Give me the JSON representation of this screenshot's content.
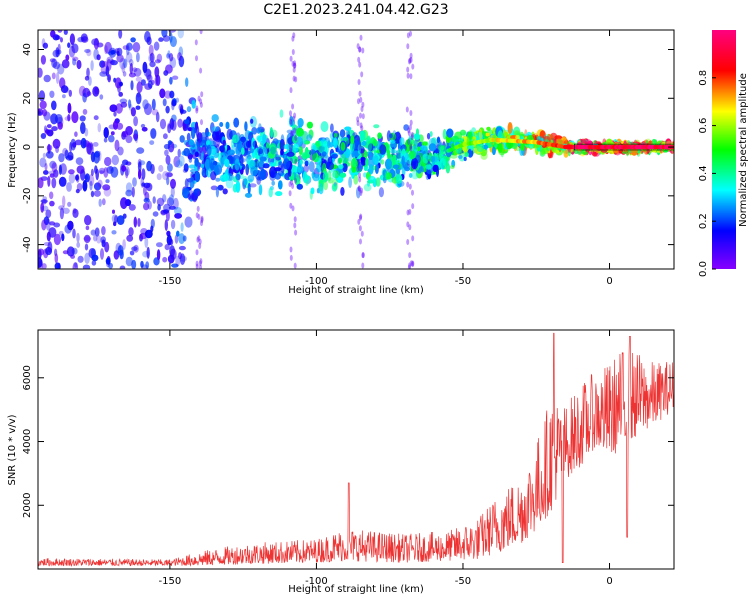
{
  "title": "C2E1.2023.241.04.42.G23",
  "chart_data": [
    {
      "type": "heatmap",
      "xlabel": "Height of straight line (km)",
      "ylabel": "Frequency (Hz)",
      "xlim": [
        -195,
        22
      ],
      "ylim": [
        -50,
        48
      ],
      "xticks": [
        -150,
        -100,
        -50,
        0
      ],
      "yticks": [
        -40,
        -20,
        0,
        20,
        40
      ],
      "colorbar": {
        "label": "Normalized spectral amplitude",
        "range": [
          0,
          1
        ],
        "ticks": [
          "0.0",
          "0.2",
          "0.4",
          "0.6",
          "0.8"
        ],
        "colormap": "gist_rainbow_r",
        "colors": [
          "#8800ff",
          "#0000ff",
          "#00ffff",
          "#00ff00",
          "#ffff00",
          "#ff0000",
          "#ff0080"
        ]
      },
      "trend": [
        {
          "x": -195,
          "spread": 48,
          "peak": 0.15
        },
        {
          "x": -150,
          "spread": 45,
          "peak": 0.2
        },
        {
          "x": -140,
          "spread": 12,
          "peak": 0.3
        },
        {
          "x": -100,
          "spread": 12,
          "peak": 0.45
        },
        {
          "x": -75,
          "spread": 10,
          "peak": 0.45
        },
        {
          "x": -55,
          "spread": 6,
          "peak": 0.5
        },
        {
          "x": -45,
          "spread": 4,
          "peak": 0.65
        },
        {
          "x": -20,
          "spread": 3,
          "peak": 0.8
        },
        {
          "x": -12,
          "spread": 1.5,
          "peak": 0.95
        },
        {
          "x": 22,
          "spread": 1.2,
          "peak": 1.0
        }
      ],
      "ridge": [
        {
          "x": -60,
          "y": -4
        },
        {
          "x": -50,
          "y": 1
        },
        {
          "x": -40,
          "y": 3
        },
        {
          "x": -25,
          "y": 2
        },
        {
          "x": -15,
          "y": 0
        },
        {
          "x": 22,
          "y": 0
        }
      ]
    },
    {
      "type": "line",
      "xlabel": "Height of straight line (km)",
      "ylabel": "SNR (10 * v/v)",
      "xlim": [
        -195,
        22
      ],
      "ylim": [
        0,
        7500
      ],
      "xticks": [
        -150,
        -100,
        -50,
        0
      ],
      "yticks": [
        2000,
        4000,
        6000
      ],
      "color": "#ee3333",
      "envelope": [
        {
          "x": -195,
          "low": 100,
          "high": 350
        },
        {
          "x": -150,
          "low": 100,
          "high": 300
        },
        {
          "x": -140,
          "low": 100,
          "high": 550
        },
        {
          "x": -125,
          "low": 150,
          "high": 800
        },
        {
          "x": -100,
          "low": 200,
          "high": 950
        },
        {
          "x": -90,
          "low": 250,
          "high": 1300
        },
        {
          "x": -70,
          "low": 200,
          "high": 1100
        },
        {
          "x": -55,
          "low": 250,
          "high": 1200
        },
        {
          "x": -45,
          "low": 300,
          "high": 1600
        },
        {
          "x": -38,
          "low": 500,
          "high": 2400
        },
        {
          "x": -30,
          "low": 800,
          "high": 3000
        },
        {
          "x": -25,
          "low": 1200,
          "high": 4000
        },
        {
          "x": -20,
          "low": 1800,
          "high": 5500
        },
        {
          "x": -15,
          "low": 2800,
          "high": 5200
        },
        {
          "x": -10,
          "low": 3200,
          "high": 5800
        },
        {
          "x": -5,
          "low": 3800,
          "high": 6200
        },
        {
          "x": 0,
          "low": 3500,
          "high": 6500
        },
        {
          "x": 5,
          "low": 3800,
          "high": 7000
        },
        {
          "x": 10,
          "low": 4200,
          "high": 6800
        },
        {
          "x": 15,
          "low": 4500,
          "high": 6500
        },
        {
          "x": 22,
          "low": 5000,
          "high": 6600
        }
      ],
      "spikes": [
        {
          "x": -89,
          "y": 2700
        },
        {
          "x": -19,
          "y": 7400
        },
        {
          "x": 7,
          "y": 7300
        },
        {
          "x": 6,
          "y": 1000
        },
        {
          "x": -16,
          "y": 200
        }
      ]
    }
  ]
}
